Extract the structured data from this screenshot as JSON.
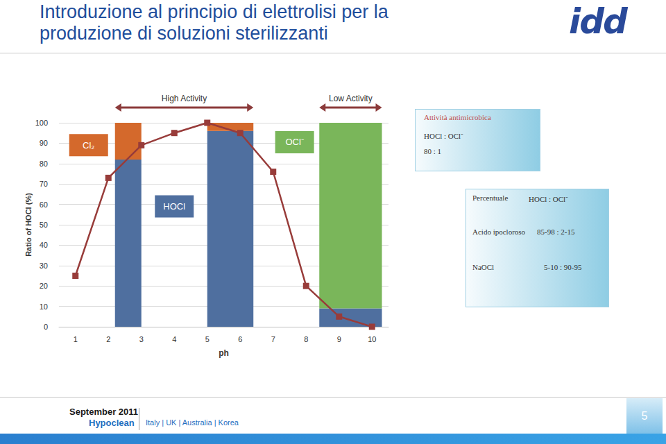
{
  "slide": {
    "title": [
      "Introduzione al principio di elettrolisi per la",
      "produzione di soluzioni sterilizzanti"
    ],
    "logo": "idd",
    "box1": {
      "title": "Attività antimicrobica",
      "lines": [
        "HOCl : OCl⁻",
        "80  :  1"
      ]
    },
    "box2": {
      "rows": [
        [
          "Percentuale",
          "HOCl : OCl⁻"
        ],
        [
          "Acido ipocloroso",
          "85-98 : 2-15"
        ],
        [
          "NaOCl",
          "5-10 : 90-95"
        ]
      ]
    },
    "footer": {
      "date": "September 2011",
      "product": "Hypoclean",
      "countries": "Italy  |  UK  |  Australia  |  Korea",
      "page": "5"
    }
  },
  "chart_data": {
    "type": "bar",
    "stacked": true,
    "x_label": "ph",
    "y_label": "Ratio of HOCl (%)",
    "xlim": [
      0.5,
      10.5
    ],
    "xticks": [
      1,
      2,
      3,
      4,
      5,
      6,
      7,
      8,
      9,
      10
    ],
    "ylim": [
      0,
      100
    ],
    "yticks": [
      0,
      10,
      20,
      30,
      40,
      50,
      60,
      70,
      80,
      90,
      100
    ],
    "grid": true,
    "bar_ranges": [
      [
        2.2,
        3.0
      ],
      [
        5.0,
        6.4
      ],
      [
        8.4,
        10.3
      ]
    ],
    "series": [
      {
        "name": "HOCl",
        "color": "#4f6f9f",
        "values": [
          82,
          96,
          9
        ]
      },
      {
        "name": "Cl₂",
        "color": "#d4692c",
        "values": [
          18,
          4,
          0
        ]
      },
      {
        "name": "OCl⁻",
        "color": "#7ab65a",
        "values": [
          0,
          0,
          91
        ]
      }
    ],
    "line": {
      "type": "line",
      "x": [
        1,
        2,
        3,
        4,
        5,
        6,
        7,
        8,
        9,
        10
      ],
      "values": [
        25,
        73,
        89,
        95,
        100,
        95,
        76,
        20,
        5,
        0
      ],
      "color": "#983c3a",
      "marker": "square"
    },
    "annotations": [
      {
        "text": "High Activity",
        "from": 2.2,
        "to": 6.4
      },
      {
        "text": "Low Activity",
        "from": 8.4,
        "to": 10.3
      }
    ]
  }
}
